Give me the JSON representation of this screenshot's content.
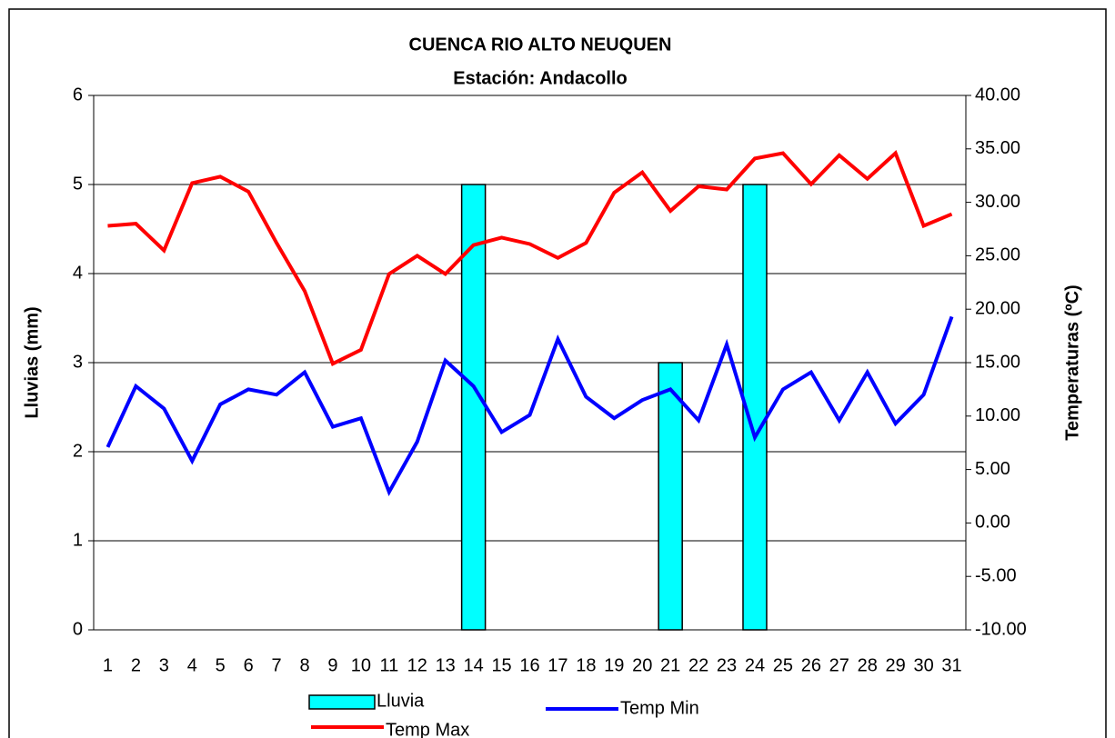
{
  "chart_data": {
    "type": "bar_line",
    "title": "CUENCA RIO ALTO NEUQUEN",
    "subtitle": "Estación: Andacollo",
    "ylabel": "Lluvias (mm)",
    "y2label": "Temperaturas (ºC)",
    "categories": [
      "1",
      "2",
      "3",
      "4",
      "5",
      "6",
      "7",
      "8",
      "9",
      "10",
      "11",
      "12",
      "13",
      "14",
      "15",
      "16",
      "17",
      "18",
      "19",
      "20",
      "21",
      "22",
      "23",
      "24",
      "25",
      "26",
      "27",
      "28",
      "29",
      "30",
      "31"
    ],
    "ylim": [
      0,
      6
    ],
    "yticks": [
      0,
      1,
      2,
      3,
      4,
      5,
      6
    ],
    "y2lim": [
      -10,
      40
    ],
    "y2ticks": [
      {
        "value": -10,
        "label": "-10.00"
      },
      {
        "value": -5,
        "label": "-5.00"
      },
      {
        "value": 0,
        "label": "0.00"
      },
      {
        "value": 5,
        "label": "5.00"
      },
      {
        "value": 10,
        "label": "10.00"
      },
      {
        "value": 15,
        "label": "15.00"
      },
      {
        "value": 20,
        "label": "20.00"
      },
      {
        "value": 25,
        "label": "25.00"
      },
      {
        "value": 30,
        "label": "30.00"
      },
      {
        "value": 35,
        "label": "35.00"
      },
      {
        "value": 40,
        "label": "40.00"
      }
    ],
    "grid": true,
    "series": [
      {
        "name": "Lluvia",
        "type": "bar",
        "color": "#00ffff",
        "values": [
          0,
          0,
          0,
          0,
          0,
          0,
          0,
          0,
          0,
          0,
          0,
          0,
          0,
          5,
          0,
          0,
          0,
          0,
          0,
          0,
          3,
          0,
          0,
          5,
          0,
          0,
          0,
          0,
          0,
          0,
          0
        ]
      },
      {
        "name": "Temp Min",
        "type": "line",
        "axis": "y2",
        "color": "#0000ff",
        "values": [
          7.1,
          12.8,
          10.7,
          5.8,
          11.1,
          12.5,
          12.0,
          14.1,
          9.0,
          9.8,
          2.9,
          7.6,
          15.2,
          12.8,
          8.5,
          10.1,
          17.2,
          11.8,
          9.8,
          11.5,
          12.5,
          9.6,
          16.7,
          8.0,
          12.5,
          14.1,
          9.6,
          14.1,
          9.3,
          12.0,
          19.3
        ]
      },
      {
        "name": "Temp Max",
        "type": "line",
        "axis": "y2",
        "color": "#ff0000",
        "values": [
          27.8,
          28.0,
          25.5,
          31.8,
          32.4,
          31.0,
          26.2,
          21.7,
          14.9,
          16.2,
          23.3,
          25.0,
          23.3,
          26.0,
          26.7,
          26.1,
          24.8,
          26.2,
          30.9,
          32.8,
          29.2,
          31.5,
          31.2,
          34.1,
          34.6,
          31.7,
          34.4,
          32.2,
          34.6,
          27.8,
          28.9
        ]
      }
    ]
  }
}
